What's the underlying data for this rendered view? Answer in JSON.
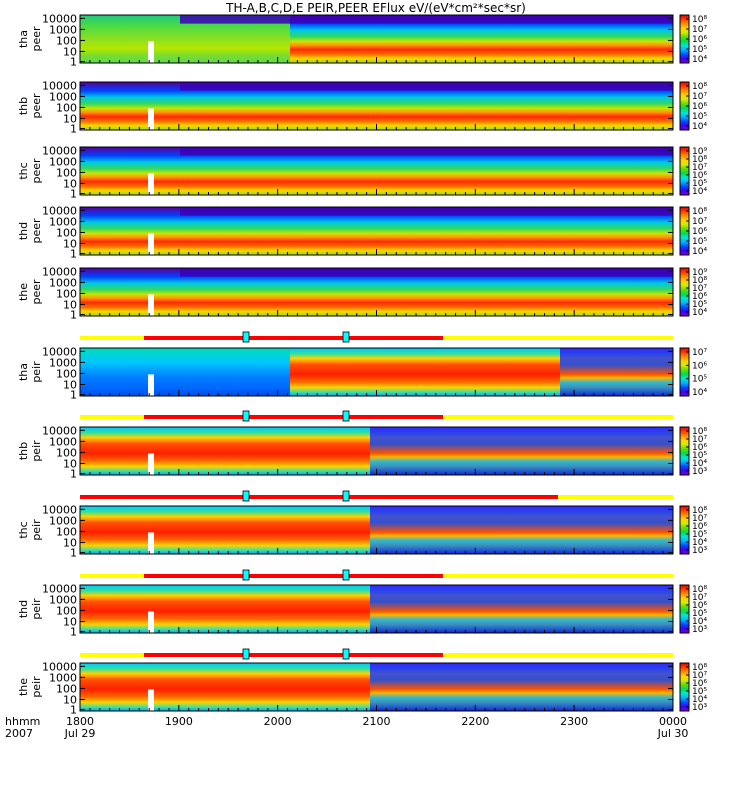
{
  "title": "TH-A,B,C,D,E  PEIR,PEER  EFlux  eV/(eV*cm²*sec*sr)",
  "colors": {
    "colorbar": [
      "#7f00c8",
      "#3c00ff",
      "#0050ff",
      "#00b4ff",
      "#00e6d2",
      "#00dc50",
      "#64dc00",
      "#d2eb00",
      "#ffd200",
      "#ff8c00",
      "#ff3c00",
      "#e10000"
    ],
    "bar_yellow": "#ffff00",
    "bar_red": "#ff0000",
    "bar_cyan": "#00ffff"
  },
  "chart_data": {
    "type": "heatmap",
    "y_scale": "log",
    "y_ticks": [
      "10000",
      "1000",
      "100",
      "10",
      "1"
    ],
    "x_ticks": [
      "1800",
      "1900",
      "2000",
      "2100",
      "2200",
      "2300",
      "0000"
    ],
    "x_start_date": "Jul 29",
    "x_end_date": "Jul 30",
    "x_axis_label": "hhmm",
    "x_axis_year": "2007",
    "panels": [
      {
        "probe": "tha",
        "product": "peer",
        "cb_labels": [
          "10⁸",
          "10⁷",
          "10⁶",
          "10⁵",
          "10⁴"
        ]
      },
      {
        "probe": "thb",
        "product": "peer",
        "cb_labels": [
          "10⁸",
          "10⁷",
          "10⁶",
          "10⁵",
          "10⁴"
        ]
      },
      {
        "probe": "thc",
        "product": "peer",
        "cb_labels": [
          "10⁹",
          "10⁸",
          "10⁷",
          "10⁶",
          "10⁵",
          "10⁴"
        ]
      },
      {
        "probe": "thd",
        "product": "peer",
        "cb_labels": [
          "10⁸",
          "10⁷",
          "10⁶",
          "10⁵",
          "10⁴"
        ]
      },
      {
        "probe": "the",
        "product": "peer",
        "cb_labels": [
          "10⁹",
          "10⁸",
          "10⁷",
          "10⁶",
          "10⁵",
          "10⁴"
        ]
      },
      {
        "probe": "tha",
        "product": "peir",
        "cb_labels": [
          "10⁷",
          "10⁶",
          "10⁵",
          "10⁴"
        ]
      },
      {
        "probe": "thb",
        "product": "peir",
        "cb_labels": [
          "10⁸",
          "10⁷",
          "10⁶",
          "10⁵",
          "10⁴",
          "10³"
        ]
      },
      {
        "probe": "thc",
        "product": "peir",
        "cb_labels": [
          "10⁸",
          "10⁷",
          "10⁶",
          "10⁵",
          "10⁴",
          "10³"
        ]
      },
      {
        "probe": "thd",
        "product": "peir",
        "cb_labels": [
          "10⁸",
          "10⁷",
          "10⁶",
          "10⁵",
          "10⁴",
          "10³"
        ]
      },
      {
        "probe": "the",
        "product": "peir",
        "cb_labels": [
          "10⁸",
          "10⁷",
          "10⁶",
          "10⁵",
          "10⁴",
          "10³"
        ]
      }
    ]
  }
}
